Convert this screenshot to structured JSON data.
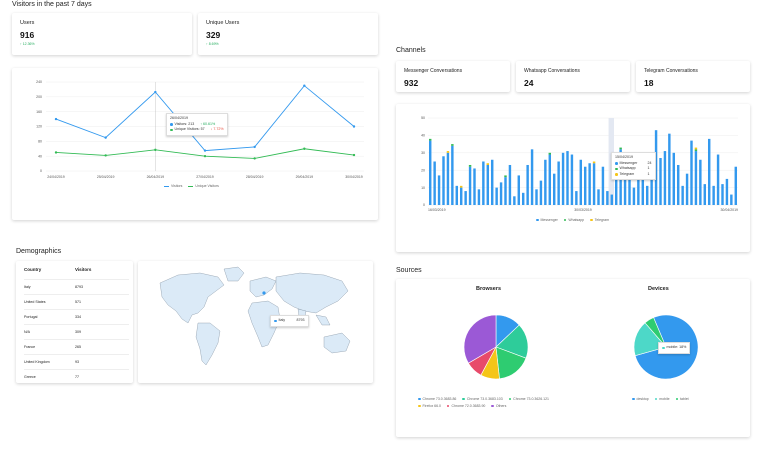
{
  "visitors_section": {
    "title": "Visitors in the past 7 days",
    "users": {
      "label": "Users",
      "value": "916",
      "change": "↑ 12.36%"
    },
    "unique_users": {
      "label": "Unique Users",
      "value": "329",
      "change": "↑ 8.69%"
    }
  },
  "visitors_chart": {
    "legend": [
      "Visitors",
      "Unique Visitors"
    ],
    "colors": {
      "visitors": "#3399ee",
      "unique": "#33bb55"
    },
    "tooltip": {
      "date": "26/04/2019",
      "visitors": "Visitors: 213",
      "visitors_change": "↑ 60.61%",
      "unique": "Unique Visitors: 57",
      "unique_change": "↓ 7.72%"
    }
  },
  "chart_data": [
    {
      "type": "line",
      "x": [
        "24/04/2019",
        "25/04/2019",
        "26/04/2019",
        "27/04/2019",
        "28/04/2019",
        "29/04/2019",
        "30/04/2019"
      ],
      "xtick_labels": [
        "24/04/2019",
        "25/04/2019",
        "26/04/2019",
        "27/04/2019",
        "28/04/2019",
        "29/04/2019",
        "30/04/2019"
      ],
      "ytick_labels": [
        "0",
        "40",
        "80",
        "120",
        "160",
        "200",
        "240"
      ],
      "ylim": [
        0,
        240
      ],
      "series": [
        {
          "name": "Visitors",
          "values": [
            140,
            90,
            213,
            55,
            65,
            230,
            120
          ]
        },
        {
          "name": "Unique Visitors",
          "values": [
            50,
            42,
            57,
            40,
            34,
            60,
            43
          ]
        }
      ]
    },
    {
      "type": "bar",
      "xtick_labels": [
        "16/03/2019",
        "30/03/2019",
        "30/04/2019"
      ],
      "ytick_labels": [
        "0",
        "10",
        "20",
        "30",
        "40",
        "50"
      ],
      "ylim": [
        0,
        50
      ],
      "series": [
        {
          "name": "Messenger",
          "values": [
            37,
            25,
            17,
            28,
            30,
            34,
            11,
            10,
            8,
            22,
            21,
            9,
            25,
            23,
            26,
            10,
            13,
            16,
            23,
            5,
            17,
            7,
            23,
            32,
            9,
            14,
            26,
            29,
            18,
            25,
            30,
            31,
            29,
            8,
            26,
            22,
            24,
            24,
            9,
            22,
            8,
            6,
            26,
            32,
            28,
            15,
            10,
            26,
            28,
            11,
            29,
            43,
            27,
            31,
            41,
            30,
            23,
            11,
            18,
            37,
            31,
            26,
            12,
            38,
            11,
            29,
            12,
            15,
            6,
            22
          ]
        },
        {
          "name": "Whatsapp",
          "values": [
            1,
            0,
            0,
            0,
            0,
            1,
            0,
            0,
            0,
            1,
            0,
            0,
            0,
            0,
            0,
            0,
            0,
            1,
            0,
            0,
            0,
            0,
            0,
            0,
            0,
            0,
            0,
            1,
            0,
            0,
            0,
            0,
            0,
            0,
            0,
            0,
            0,
            0,
            0,
            0,
            0,
            0,
            0,
            1,
            0,
            0,
            0,
            0,
            0,
            0,
            0,
            0,
            0,
            0,
            0,
            0,
            0,
            0,
            0,
            0,
            1,
            0,
            0,
            0,
            0,
            0,
            0,
            0,
            0,
            0
          ]
        },
        {
          "name": "Telegram",
          "values": [
            0,
            0,
            0,
            0,
            1,
            0,
            0,
            1,
            0,
            0,
            0,
            0,
            0,
            1,
            0,
            0,
            0,
            0,
            0,
            0,
            0,
            0,
            0,
            0,
            0,
            0,
            0,
            0,
            0,
            0,
            0,
            0,
            0,
            0,
            0,
            0,
            0,
            1,
            0,
            0,
            0,
            0,
            0,
            0,
            0,
            0,
            0,
            0,
            0,
            0,
            0,
            0,
            0,
            0,
            0,
            0,
            0,
            0,
            0,
            0,
            1,
            0,
            0,
            0,
            0,
            0,
            0,
            0,
            0,
            0
          ]
        }
      ]
    },
    {
      "type": "pie",
      "title": "Browsers",
      "labels": [
        "Chrome 73.0.3683.86",
        "Chrome 73.0.3683.103",
        "Chrome 73.0.3626.121",
        "Firefox 66.0",
        "Chrome 72.0.3683.90",
        "Others"
      ],
      "values": [
        89,
        122,
        121,
        66,
        60,
        230
      ]
    },
    {
      "type": "pie",
      "title": "Devices",
      "labels": [
        "desktop",
        "mobile",
        "tablet"
      ],
      "values": [
        77,
        18,
        5
      ]
    }
  ],
  "channels": {
    "title": "Channels",
    "cards": [
      {
        "label": "Messenger Conversations",
        "value": "932"
      },
      {
        "label": "Whatsapp Conversations",
        "value": "24"
      },
      {
        "label": "Telegram Conversations",
        "value": "18"
      }
    ],
    "legend": [
      "Messenger",
      "Whatsapp",
      "Telegram"
    ],
    "colors": {
      "messenger": "#3399ee",
      "whatsapp": "#33bb55",
      "telegram": "#f5c518"
    },
    "tooltip": {
      "date": "15/04/2019",
      "rows": [
        {
          "name": "Messenger",
          "value": "24"
        },
        {
          "name": "Whatsapp",
          "value": "1"
        },
        {
          "name": "Telegram",
          "value": "1"
        }
      ]
    }
  },
  "demographics": {
    "title": "Demographics",
    "columns": [
      "Country",
      "Visitors"
    ],
    "rows": [
      {
        "country": "Italy",
        "visitors": "8793"
      },
      {
        "country": "United States",
        "visitors": "571"
      },
      {
        "country": "Portugal",
        "visitors": "334"
      },
      {
        "country": "N/A",
        "visitors": "309"
      },
      {
        "country": "France",
        "visitors": "265"
      },
      {
        "country": "United Kingdom",
        "visitors": "93"
      },
      {
        "country": "Greece",
        "visitors": "77"
      }
    ],
    "map_tooltip": {
      "country": "Italy",
      "value": "8793"
    }
  },
  "sources": {
    "title": "Sources",
    "browsers_colors": [
      "#3399ee",
      "#2ecc9a",
      "#2ecc71",
      "#f5c518",
      "#e84a6a",
      "#9b59d6"
    ],
    "devices_colors": [
      "#3399ee",
      "#4dd8c8",
      "#2ecc71"
    ],
    "devices_tooltip": "mobile: 18%"
  }
}
